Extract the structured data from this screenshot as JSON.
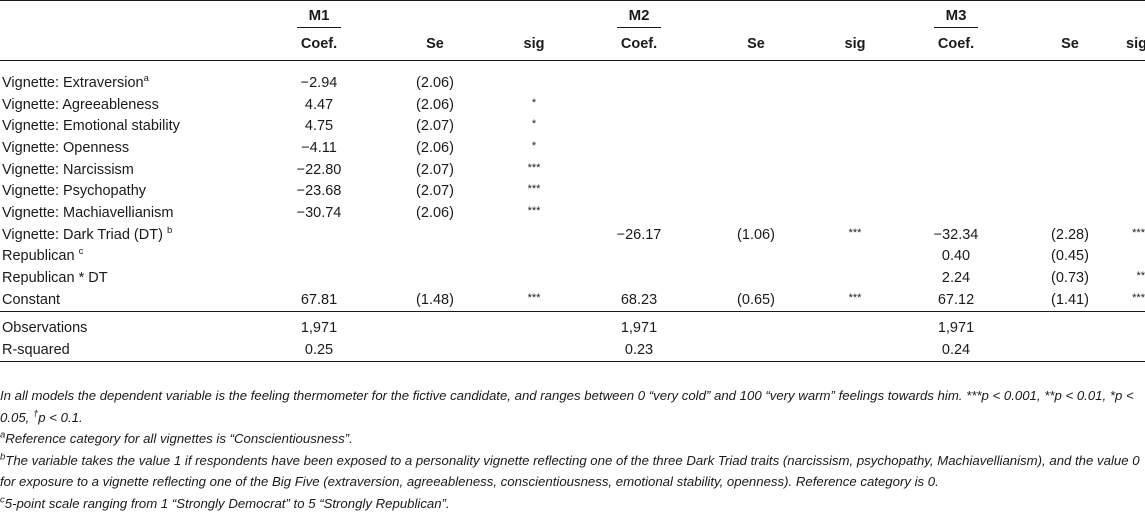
{
  "table": {
    "models": [
      "M1",
      "M2",
      "M3"
    ],
    "col_headers": [
      "Coef.",
      "Se",
      "sig"
    ],
    "rows": [
      {
        "label": "Vignette: Extraversion",
        "label_sup": "a",
        "m1": [
          "−2.94",
          "(2.06)",
          ""
        ],
        "m2": [
          "",
          "",
          ""
        ],
        "m3": [
          "",
          "",
          ""
        ]
      },
      {
        "label": "Vignette: Agreeableness",
        "label_sup": "",
        "m1": [
          "4.47",
          "(2.06)",
          "*"
        ],
        "m2": [
          "",
          "",
          ""
        ],
        "m3": [
          "",
          "",
          ""
        ]
      },
      {
        "label": "Vignette: Emotional stability",
        "label_sup": "",
        "m1": [
          "4.75",
          "(2.07)",
          "*"
        ],
        "m2": [
          "",
          "",
          ""
        ],
        "m3": [
          "",
          "",
          ""
        ]
      },
      {
        "label": "Vignette: Openness",
        "label_sup": "",
        "m1": [
          "−4.11",
          "(2.06)",
          "*"
        ],
        "m2": [
          "",
          "",
          ""
        ],
        "m3": [
          "",
          "",
          ""
        ]
      },
      {
        "label": "Vignette: Narcissism",
        "label_sup": "",
        "m1": [
          "−22.80",
          "(2.07)",
          "***"
        ],
        "m2": [
          "",
          "",
          ""
        ],
        "m3": [
          "",
          "",
          ""
        ]
      },
      {
        "label": "Vignette: Psychopathy",
        "label_sup": "",
        "m1": [
          "−23.68",
          "(2.07)",
          "***"
        ],
        "m2": [
          "",
          "",
          ""
        ],
        "m3": [
          "",
          "",
          ""
        ]
      },
      {
        "label": "Vignette: Machiavellianism",
        "label_sup": "",
        "m1": [
          "−30.74",
          "(2.06)",
          "***"
        ],
        "m2": [
          "",
          "",
          ""
        ],
        "m3": [
          "",
          "",
          ""
        ]
      },
      {
        "label": "Vignette: Dark Triad (DT) ",
        "label_sup": "b",
        "m1": [
          "",
          "",
          ""
        ],
        "m2": [
          "−26.17",
          "(1.06)",
          "***"
        ],
        "m3": [
          "−32.34",
          "(2.28)",
          "***"
        ]
      },
      {
        "label": "Republican ",
        "label_sup": "c",
        "m1": [
          "",
          "",
          ""
        ],
        "m2": [
          "",
          "",
          ""
        ],
        "m3": [
          "0.40",
          "(0.45)",
          ""
        ]
      },
      {
        "label": "Republican * DT",
        "label_sup": "",
        "m1": [
          "",
          "",
          ""
        ],
        "m2": [
          "",
          "",
          ""
        ],
        "m3": [
          "2.24",
          "(0.73)",
          "**"
        ]
      },
      {
        "label": "Constant",
        "label_sup": "",
        "m1": [
          "67.81",
          "(1.48)",
          "***"
        ],
        "m2": [
          "68.23",
          "(0.65)",
          "***"
        ],
        "m3": [
          "67.12",
          "(1.41)",
          "***"
        ]
      }
    ],
    "stats": [
      {
        "label": "Observations",
        "values": [
          "1,971",
          "1,971",
          "1,971"
        ]
      },
      {
        "label": "R-squared",
        "values": [
          "0.25",
          "0.23",
          "0.24"
        ]
      }
    ]
  },
  "notes": {
    "n1": "In all models the dependent variable is the feeling thermometer for the fictive candidate, and ranges between 0 “very cold” and 100 “very warm” feelings towards him. ***p < 0.001, **p < 0.01, *p < 0.05, ",
    "n1_dagger": "†",
    "n1_end": "p < 0.1.",
    "a_sup": "a",
    "a": "Reference category for all vignettes is “Conscientiousness”.",
    "b_sup": "b",
    "b": "The variable takes the value 1 if respondents have been exposed to a personality vignette reflecting one of the three Dark Triad traits (narcissism, psychopathy, Machiavellianism), and the value 0 for exposure to a vignette reflecting one of the Big Five (extraversion, agreeableness, conscientiousness, emotional stability, openness). Reference category is 0.",
    "c_sup": "c",
    "c": "5-point scale ranging from 1 “Strongly Democrat” to 5 “Strongly Republican”."
  }
}
